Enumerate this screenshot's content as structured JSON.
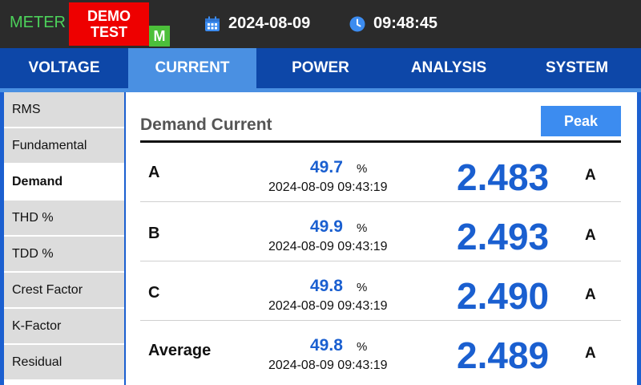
{
  "header": {
    "meter_label": "METER",
    "demo_line1": "DEMO",
    "demo_line2": "TEST",
    "mode_badge": "M",
    "date": "2024-08-09",
    "time": "09:48:45",
    "calendar_icon": "calendar-icon",
    "clock_icon": "clock-icon"
  },
  "tabs": [
    {
      "label": "VOLTAGE",
      "active": false
    },
    {
      "label": "CURRENT",
      "active": true
    },
    {
      "label": "POWER",
      "active": false
    },
    {
      "label": "ANALYSIS",
      "active": false
    },
    {
      "label": "SYSTEM",
      "active": false
    }
  ],
  "sidebar": {
    "items": [
      {
        "label": "RMS",
        "active": false
      },
      {
        "label": "Fundamental",
        "active": false
      },
      {
        "label": "Demand",
        "active": true
      },
      {
        "label": "THD %",
        "active": false
      },
      {
        "label": "TDD %",
        "active": false
      },
      {
        "label": "Crest Factor",
        "active": false
      },
      {
        "label": "K-Factor",
        "active": false
      },
      {
        "label": "Residual",
        "active": false
      }
    ]
  },
  "main": {
    "title": "Demand Current",
    "peak_button": "Peak",
    "rows": [
      {
        "name": "A",
        "percent": "49.7",
        "percent_unit": "%",
        "timestamp": "2024-08-09 09:43:19",
        "value": "2.483",
        "unit": "A"
      },
      {
        "name": "B",
        "percent": "49.9",
        "percent_unit": "%",
        "timestamp": "2024-08-09 09:43:19",
        "value": "2.493",
        "unit": "A"
      },
      {
        "name": "C",
        "percent": "49.8",
        "percent_unit": "%",
        "timestamp": "2024-08-09 09:43:19",
        "value": "2.490",
        "unit": "A"
      },
      {
        "name": "Average",
        "percent": "49.8",
        "percent_unit": "%",
        "timestamp": "2024-08-09 09:43:19",
        "value": "2.489",
        "unit": "A"
      }
    ]
  },
  "colors": {
    "accent_blue": "#1a5fd0",
    "tab_bar": "#0d47a8",
    "tab_active": "#4a90e2",
    "demo_red": "#ee0000",
    "meter_green": "#4cd15a",
    "badge_green": "#4cbf3a",
    "topbar": "#2b2b2b"
  }
}
